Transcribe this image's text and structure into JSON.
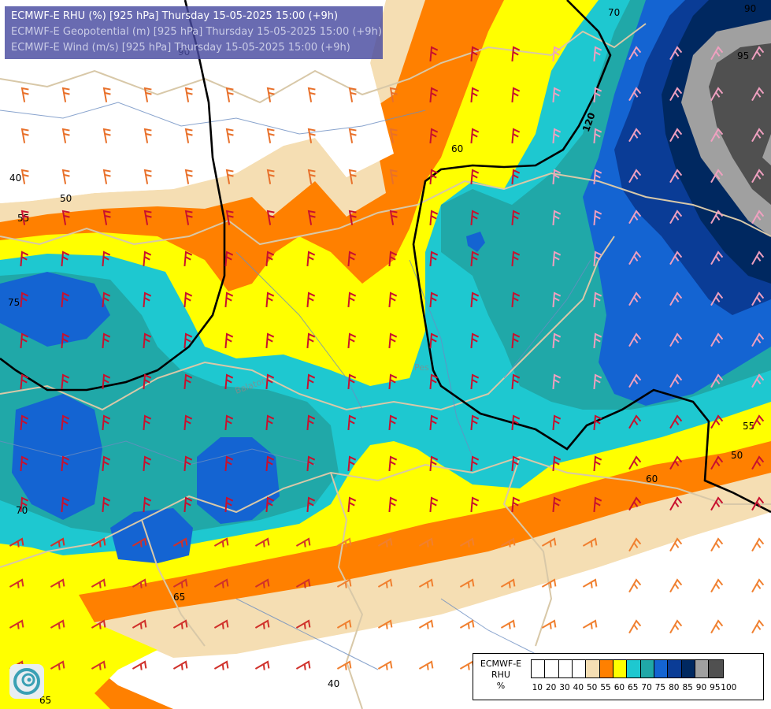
{
  "title": {
    "line1": "ECMWF-E RHU (%) [925 hPa] Thursday 15-05-2025 15:00 (+9h)",
    "line2": "ECMWF-E Geopotential (m) [925 hPa] Thursday 15-05-2025 15:00 (+9h)",
    "line3": "ECMWF-E Wind (m/s) [925 hPa] Thursday 15-05-2025 15:00 (+9h)"
  },
  "legend": {
    "model": "ECMWF-E",
    "variable": "RHU",
    "unit": "%",
    "ticks": [
      "10",
      "20",
      "30",
      "40",
      "50",
      "55",
      "60",
      "65",
      "70",
      "75",
      "80",
      "85",
      "90",
      "95",
      "100"
    ],
    "colors": [
      "#ffffff",
      "#ffffff",
      "#ffffff",
      "#ffffff",
      "#f5deb3",
      "#ff8000",
      "#ffff00",
      "#1ec8d0",
      "#20a8a8",
      "#1464d2",
      "#0a3c96",
      "#002860",
      "#a0a0a0",
      "#505050"
    ]
  },
  "contour_labels": {
    "c40": "40",
    "c50a": "50",
    "c55a": "55",
    "c75": "75",
    "c60a": "60",
    "c70a": "70",
    "c90": "90",
    "c95": "95",
    "c120": "120",
    "c55b": "55",
    "c50b": "50",
    "c60b": "60",
    "c65": "65",
    "c70b": "70",
    "c40b": "40",
    "c65b": "65",
    "c90b": "90"
  },
  "place_labels": {
    "p1": "Pes",
    "p2": "Balaton"
  },
  "palette": {
    "white": "#ffffff",
    "wheat": "#f5deb3",
    "orange": "#ff8000",
    "yellow": "#ffff00",
    "cyan": "#1ec8d0",
    "teal": "#20a8a8",
    "blue": "#1464d2",
    "dblue": "#0a3c96",
    "navy": "#002860",
    "grey": "#a0a0a0",
    "dgrey": "#505050",
    "border": "#d8c8a8",
    "river": "#6a8cc0",
    "geo": "#000000"
  },
  "icons": [
    "ecmwf-logo-icon"
  ]
}
